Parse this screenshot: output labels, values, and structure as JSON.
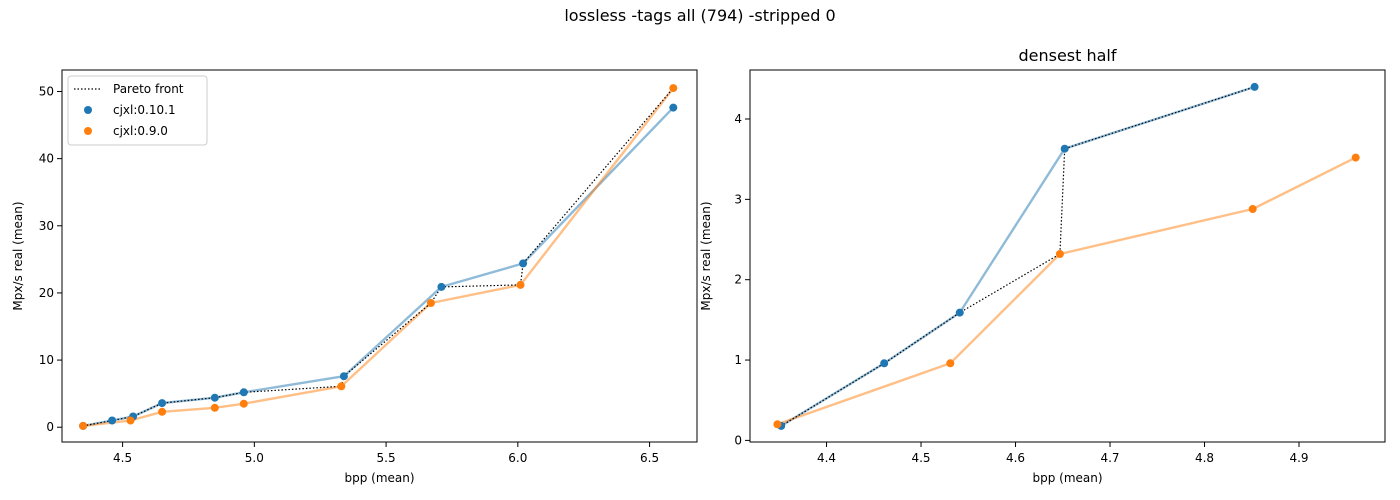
{
  "suptitle": "lossless -tags all (794) -stripped 0",
  "colors": {
    "blue": "#1f77b4",
    "orange": "#ff7f0e",
    "pareto": "#000000"
  },
  "chart_data": [
    {
      "type": "scatter",
      "title": "",
      "xlabel": "bpp (mean)",
      "ylabel": "Mpx/s real (mean)",
      "xlim": [
        4.27,
        6.68
      ],
      "ylim": [
        -2.2,
        53.2
      ],
      "xticks": [
        4.5,
        5.0,
        5.5,
        6.0,
        6.5
      ],
      "xtick_labels": [
        "4.5",
        "5.0",
        "5.5",
        "6.0",
        "6.5"
      ],
      "yticks": [
        0,
        10,
        20,
        30,
        40,
        50
      ],
      "ytick_labels": [
        "0",
        "10",
        "20",
        "30",
        "40",
        "50"
      ],
      "grid": false,
      "legend": {
        "placement": "top-left",
        "entries": [
          {
            "label": "Pareto front",
            "kind": "line",
            "color": "#000000"
          },
          {
            "label": "cjxl:0.10.1",
            "kind": "marker",
            "color": "#1f77b4"
          },
          {
            "label": "cjxl:0.9.0",
            "kind": "marker",
            "color": "#ff7f0e"
          }
        ]
      },
      "series": [
        {
          "name": "cjxl:0.10.1",
          "color": "#1f77b4",
          "x": [
            4.35,
            4.46,
            4.54,
            4.65,
            4.85,
            4.96,
            5.34,
            5.71,
            6.02,
            6.59
          ],
          "y": [
            0.2,
            1.0,
            1.6,
            3.6,
            4.4,
            5.2,
            7.6,
            20.9,
            24.4,
            47.6
          ]
        },
        {
          "name": "cjxl:0.9.0",
          "color": "#ff7f0e",
          "x": [
            4.35,
            4.53,
            4.65,
            4.85,
            4.96,
            5.33,
            5.67,
            6.01,
            6.59
          ],
          "y": [
            0.2,
            1.0,
            2.3,
            2.9,
            3.5,
            6.1,
            18.5,
            21.2,
            50.5
          ]
        }
      ],
      "pareto_front": {
        "x": [
          4.35,
          4.46,
          4.54,
          4.65,
          4.85,
          4.96,
          5.33,
          5.34,
          5.67,
          5.71,
          6.01,
          6.02,
          6.59
        ],
        "y": [
          0.2,
          1.0,
          1.6,
          3.6,
          4.4,
          5.2,
          6.1,
          7.6,
          18.5,
          20.9,
          21.2,
          24.4,
          50.5
        ]
      }
    },
    {
      "type": "scatter",
      "title": "densest half",
      "xlabel": "bpp (mean)",
      "ylabel": "Mpx/s real (mean)",
      "xlim": [
        4.319,
        4.991
      ],
      "ylim": [
        -0.02,
        4.61
      ],
      "xticks": [
        4.4,
        4.5,
        4.6,
        4.7,
        4.8,
        4.9
      ],
      "xtick_labels": [
        "4.4",
        "4.5",
        "4.6",
        "4.7",
        "4.8",
        "4.9"
      ],
      "yticks": [
        0,
        1,
        2,
        3,
        4
      ],
      "ytick_labels": [
        "0",
        "1",
        "2",
        "3",
        "4"
      ],
      "grid": false,
      "series": [
        {
          "name": "cjxl:0.10.1",
          "color": "#1f77b4",
          "x": [
            4.352,
            4.461,
            4.541,
            4.652,
            4.853
          ],
          "y": [
            0.18,
            0.96,
            1.59,
            3.63,
            4.4
          ]
        },
        {
          "name": "cjxl:0.9.0",
          "color": "#ff7f0e",
          "x": [
            4.348,
            4.531,
            4.647,
            4.851,
            4.96
          ],
          "y": [
            0.2,
            0.96,
            2.32,
            2.88,
            3.52
          ]
        }
      ],
      "pareto_front": {
        "x": [
          4.348,
          4.352,
          4.461,
          4.541,
          4.647,
          4.652,
          4.853
        ],
        "y": [
          0.2,
          0.18,
          0.96,
          1.59,
          2.32,
          3.63,
          4.4
        ]
      }
    }
  ]
}
